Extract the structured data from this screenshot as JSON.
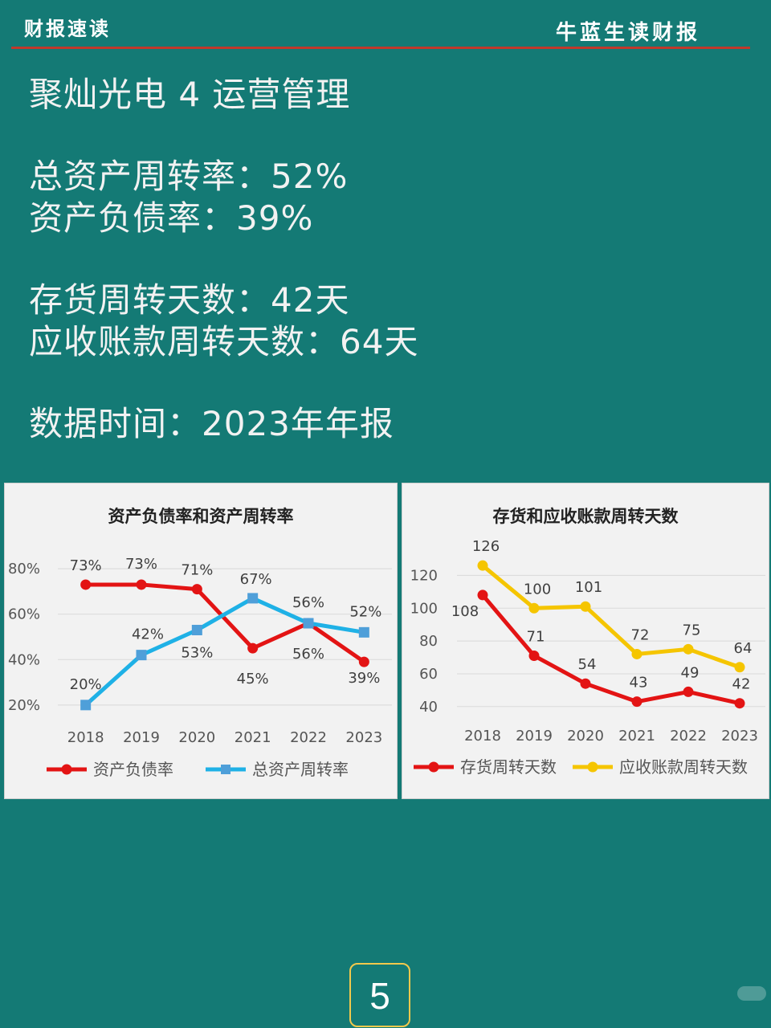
{
  "header": {
    "left_title": "财报速读",
    "right_title": "牛蓝生读财报"
  },
  "content": {
    "heading": "聚灿光电 4 运营管理",
    "total_asset_turnover": "总资产周转率：52%",
    "debt_ratio": "资产负债率：39%",
    "inventory_days": "存货周转天数：42天",
    "receivable_days": "应收账款周转天数：64天",
    "data_time": "数据时间：2023年年报"
  },
  "page_number": "5",
  "colors": {
    "background": "#147a75",
    "red": "#e31414",
    "blue": "#1fb1e6",
    "yellow": "#f5c500",
    "header_line": "#c0392b"
  },
  "chart_data": [
    {
      "type": "line",
      "title": "资产负债率和资产周转率",
      "x": [
        "2018",
        "2019",
        "2020",
        "2021",
        "2022",
        "2023"
      ],
      "ytick_labels": [
        "20%",
        "40%",
        "60%",
        "80%"
      ],
      "ylim": [
        15,
        85
      ],
      "grid": true,
      "legend_position": "bottom",
      "series": [
        {
          "name": "资产负债率",
          "color": "#e31414",
          "marker": "circle",
          "values": [
            73,
            73,
            71,
            45,
            56,
            39
          ],
          "labels": [
            "73%",
            "73%",
            "71%",
            "45%",
            "56%",
            "39%"
          ]
        },
        {
          "name": "总资产周转率",
          "color": "#1fb1e6",
          "marker": "square",
          "values": [
            20,
            42,
            53,
            67,
            56,
            52
          ],
          "labels": [
            "20%",
            "42%",
            "53%",
            "67%",
            "56%",
            "52%"
          ]
        }
      ]
    },
    {
      "type": "line",
      "title": "存货和应收账款周转天数",
      "x": [
        "2018",
        "2019",
        "2020",
        "2021",
        "2022",
        "2023"
      ],
      "ytick_labels": [
        "40",
        "60",
        "80",
        "100",
        "120"
      ],
      "ylim": [
        35,
        130
      ],
      "grid": true,
      "legend_position": "bottom",
      "series": [
        {
          "name": "存货周转天数",
          "color": "#e31414",
          "marker": "circle",
          "values": [
            108,
            71,
            54,
            43,
            49,
            42
          ],
          "labels": [
            "108",
            "71",
            "54",
            "43",
            "49",
            "42"
          ]
        },
        {
          "name": "应收账款周转天数",
          "color": "#f5c500",
          "marker": "circle",
          "values": [
            126,
            100,
            101,
            72,
            75,
            64
          ],
          "labels": [
            "126",
            "100",
            "101",
            "72",
            "75",
            "64"
          ]
        }
      ]
    }
  ]
}
